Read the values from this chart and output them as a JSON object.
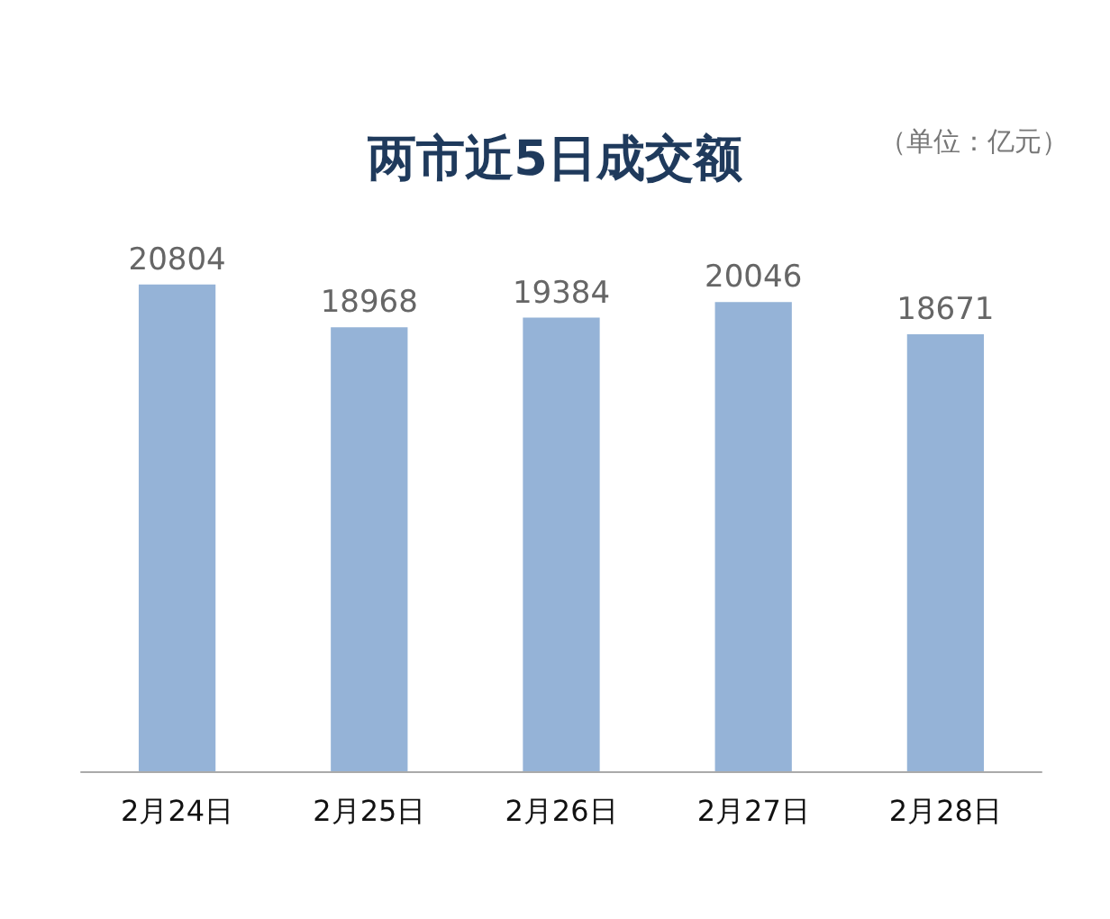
{
  "chart_data": {
    "type": "bar",
    "title": "两市近5日成交额",
    "annotations": [
      "（单位：亿元）"
    ],
    "categories": [
      "2月24日",
      "2月25日",
      "2月26日",
      "2月27日",
      "2月28日"
    ],
    "values": [
      20804,
      18968,
      19384,
      20046,
      18671
    ],
    "color": "#95b3d7",
    "data_labels": true,
    "tick_labels": "x",
    "grid": false
  }
}
